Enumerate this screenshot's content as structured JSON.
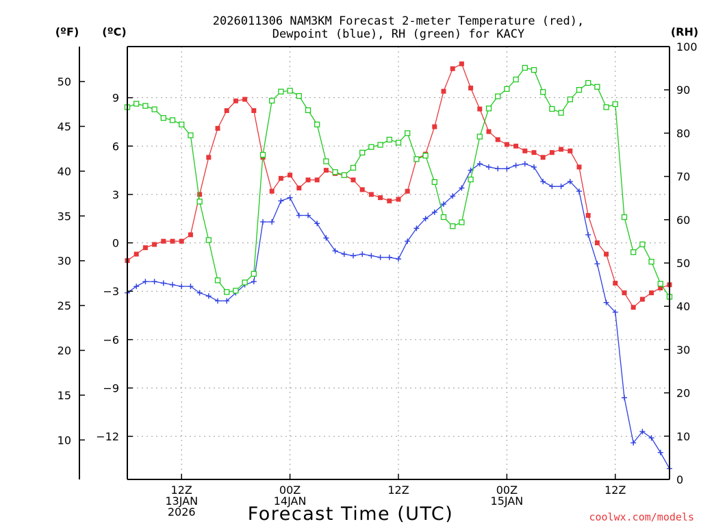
{
  "chart_data": {
    "type": "line",
    "title": {
      "line1": "2026011306 NAM3KM Forecast 2-meter Temperature (red),",
      "line2": "Dewpoint (blue), RH (green) for KACY"
    },
    "xlabel": "Forecast Time (UTC)",
    "credit": "coolwx.com/models",
    "x_unit": "hours since 2026-01-13 06Z",
    "xlim": [
      0,
      60
    ],
    "x_ticks": [
      {
        "x": 6,
        "lines": [
          "12Z",
          "13JAN",
          "2026"
        ]
      },
      {
        "x": 18,
        "lines": [
          "00Z",
          "14JAN"
        ]
      },
      {
        "x": 30,
        "lines": [
          "12Z"
        ]
      },
      {
        "x": 42,
        "lines": [
          "00Z",
          "15JAN"
        ]
      },
      {
        "x": 54,
        "lines": [
          "12Z"
        ]
      }
    ],
    "axes": {
      "celsius": {
        "label": "(ºC)",
        "ylim": [
          -14.67,
          12.17
        ],
        "ticks": [
          9,
          6,
          3,
          0,
          -3,
          -6,
          -9,
          -12
        ],
        "tick_labels": [
          "9",
          "6",
          "3",
          "0",
          "−3",
          "−6",
          "−9",
          "−12"
        ]
      },
      "fahrenheit": {
        "label": "(ºF)",
        "ticks": [
          50,
          45,
          40,
          35,
          30,
          25,
          20,
          15,
          10
        ],
        "tick_labels": [
          "50",
          "45",
          "40",
          "35",
          "30",
          "25",
          "20",
          "15",
          "10"
        ]
      },
      "rh": {
        "label": "(RH)",
        "ylim": [
          0,
          100
        ],
        "ticks": [
          100,
          90,
          80,
          70,
          60,
          50,
          40,
          30,
          20,
          10,
          0
        ],
        "tick_labels": [
          "100",
          "90",
          "80",
          "70",
          "60",
          "50",
          "40",
          "30",
          "20",
          "10",
          "0"
        ]
      }
    },
    "series": [
      {
        "name": "Temperature",
        "unit": "°C",
        "axis": "celsius",
        "color": "#e8373a",
        "marker": "filled-square",
        "x": [
          0,
          1,
          2,
          3,
          4,
          5,
          6,
          7,
          8,
          9,
          10,
          11,
          12,
          13,
          14,
          15,
          16,
          17,
          18,
          19,
          20,
          21,
          22,
          23,
          24,
          25,
          26,
          27,
          28,
          29,
          30,
          31,
          32,
          33,
          34,
          35,
          36,
          37,
          38,
          39,
          40,
          41,
          42,
          43,
          44,
          45,
          46,
          47,
          48,
          49,
          50,
          51,
          52,
          53,
          54,
          55,
          56,
          57,
          58,
          59,
          60
        ],
        "values": [
          -1.1,
          -0.7,
          -0.3,
          -0.1,
          0.1,
          0.1,
          0.1,
          0.5,
          3.0,
          5.3,
          7.1,
          8.2,
          8.8,
          8.9,
          8.2,
          5.3,
          3.2,
          4.0,
          4.2,
          3.4,
          3.9,
          3.9,
          4.5,
          4.3,
          4.2,
          3.9,
          3.3,
          3.0,
          2.8,
          2.6,
          2.7,
          3.2,
          5.2,
          5.5,
          7.2,
          9.4,
          10.8,
          11.1,
          9.6,
          8.3,
          6.9,
          6.4,
          6.1,
          6.0,
          5.7,
          5.6,
          5.3,
          5.6,
          5.8,
          5.7,
          4.7,
          1.7,
          0.0,
          -0.7,
          -2.5,
          -3.1,
          -4.0,
          -3.5,
          -3.1,
          -2.8,
          -2.6
        ]
      },
      {
        "name": "Dewpoint",
        "unit": "°C",
        "axis": "celsius",
        "color": "#2d3fe0",
        "marker": "plus",
        "x": [
          0,
          1,
          2,
          3,
          4,
          5,
          6,
          7,
          8,
          9,
          10,
          11,
          12,
          13,
          14,
          15,
          16,
          17,
          18,
          19,
          20,
          21,
          22,
          23,
          24,
          25,
          26,
          27,
          28,
          29,
          30,
          31,
          32,
          33,
          34,
          35,
          36,
          37,
          38,
          39,
          40,
          41,
          42,
          43,
          44,
          45,
          46,
          47,
          48,
          49,
          50,
          51,
          52,
          53,
          54,
          55,
          56,
          57,
          58,
          59,
          60
        ],
        "values": [
          -3.1,
          -2.7,
          -2.4,
          -2.4,
          -2.5,
          -2.6,
          -2.7,
          -2.7,
          -3.1,
          -3.3,
          -3.6,
          -3.6,
          -3.1,
          -2.6,
          -2.4,
          1.3,
          1.3,
          2.6,
          2.8,
          1.7,
          1.7,
          1.2,
          0.3,
          -0.5,
          -0.7,
          -0.8,
          -0.7,
          -0.8,
          -0.9,
          -0.9,
          -1.0,
          0.1,
          0.9,
          1.5,
          1.9,
          2.4,
          2.9,
          3.4,
          4.5,
          4.9,
          4.7,
          4.6,
          4.6,
          4.8,
          4.9,
          4.7,
          3.8,
          3.5,
          3.5,
          3.8,
          3.2,
          0.5,
          -1.3,
          -3.7,
          -4.3,
          -9.6,
          -12.4,
          -11.7,
          -12.1,
          -13.0,
          -14.0
        ]
      },
      {
        "name": "RH",
        "unit": "%",
        "axis": "rh",
        "color": "#1ec91e",
        "marker": "open-square",
        "x": [
          0,
          1,
          2,
          3,
          4,
          5,
          6,
          7,
          8,
          9,
          10,
          11,
          12,
          13,
          14,
          15,
          16,
          17,
          18,
          19,
          20,
          21,
          22,
          23,
          24,
          25,
          26,
          27,
          28,
          29,
          30,
          31,
          32,
          33,
          34,
          35,
          36,
          37,
          38,
          39,
          40,
          41,
          42,
          43,
          44,
          45,
          46,
          47,
          48,
          49,
          50,
          51,
          52,
          53,
          54,
          55,
          56,
          57,
          58,
          59,
          60
        ],
        "values": [
          86.0,
          86.8,
          86.3,
          85.5,
          83.5,
          83.0,
          82.0,
          79.5,
          64.2,
          55.3,
          46.0,
          43.3,
          43.6,
          45.5,
          47.5,
          75.0,
          87.5,
          89.6,
          89.8,
          88.6,
          85.3,
          82.0,
          73.5,
          71.0,
          70.3,
          72.0,
          75.5,
          76.8,
          77.3,
          78.5,
          77.8,
          80.0,
          74.0,
          74.8,
          68.7,
          60.6,
          58.5,
          59.4,
          69.3,
          79.2,
          85.7,
          88.5,
          90.2,
          92.4,
          95.1,
          94.6,
          89.5,
          85.6,
          84.7,
          87.8,
          90.0,
          91.6,
          90.7,
          86.0,
          86.7,
          60.6,
          52.5,
          54.3,
          50.3,
          45.2,
          42.2
        ]
      }
    ]
  }
}
